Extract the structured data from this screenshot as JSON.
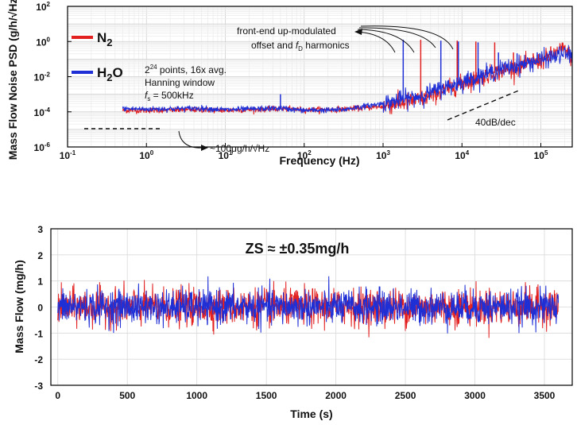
{
  "chart_data": [
    {
      "type": "line",
      "xscale": "log",
      "yscale": "log",
      "xlabel": "Frequency (Hz)",
      "ylabel": "Mass Flow Noise PSD (g/h/√Hz)",
      "xlim": [
        0.1,
        250000
      ],
      "ylim": [
        1e-06,
        100
      ],
      "xticks": [
        "10-1",
        "100",
        "101",
        "102",
        "103",
        "104",
        "105"
      ],
      "yticks": [
        "10-6",
        "10-4",
        "10-2",
        "100",
        "102"
      ],
      "grid": true,
      "legend_position": "top-left",
      "series": [
        {
          "name": "N2",
          "color": "#e32020",
          "x": [
            0.5,
            1,
            5,
            10,
            50,
            100,
            300,
            1000,
            3000,
            10000,
            30000,
            100000,
            200000,
            250000
          ],
          "y": [
            0.00012,
            0.00012,
            0.00013,
            0.00012,
            0.00015,
            0.00013,
            0.00014,
            0.0002,
            0.0005,
            0.004,
            0.02,
            0.08,
            0.4,
            0.1
          ]
        },
        {
          "name": "H2O",
          "color": "#1e2fd6",
          "x": [
            0.5,
            1,
            5,
            10,
            50,
            100,
            300,
            1000,
            3000,
            10000,
            30000,
            100000,
            200000,
            250000
          ],
          "y": [
            0.00015,
            0.00014,
            0.00016,
            0.00013,
            0.00016,
            0.00012,
            0.00013,
            0.0003,
            0.0008,
            0.005,
            0.025,
            0.09,
            0.2,
            0.15
          ]
        }
      ],
      "harmonic_peaks": [
        {
          "series": "H2O",
          "x": [
            1800,
            5400,
            9000,
            16000,
            29000,
            50000,
            90000
          ]
        },
        {
          "series": "N2",
          "x": [
            3000,
            8700,
            15000,
            26000,
            45000,
            80000
          ]
        }
      ],
      "annotations": {
        "acq_line1": "2",
        "acq_line1_sup": "24",
        "acq_line1_rest": " points, 16x avg.",
        "acq_line2": "Hanning window",
        "acq_line3_f": "f",
        "acq_line3_sub": "s",
        "acq_line3_rest": " = 500kHz",
        "frontend_line1": "front-end up-modulated",
        "frontend_line2_a": "offset and ",
        "frontend_line2_f": "f",
        "frontend_line2_sub": "D",
        "frontend_line2_b": " harmonics",
        "floor": "~100μg/h/√Hz",
        "slope": "40dB/dec"
      },
      "legend": {
        "n2_main": "N",
        "n2_sub": "2",
        "h2o_main": "H",
        "h2o_sub": "2",
        "h2o_tail": "O"
      }
    },
    {
      "type": "line",
      "xlabel": "Time (s)",
      "ylabel": "Mass Flow (mg/h)",
      "xlim": [
        -50,
        3700
      ],
      "ylim": [
        -3,
        3
      ],
      "xticks": [
        "0",
        "500",
        "1000",
        "1500",
        "2000",
        "2500",
        "3000",
        "3500"
      ],
      "yticks": [
        "3",
        "2",
        "1",
        "0",
        "-1",
        "-2",
        "-3"
      ],
      "grid": true,
      "annotation": "ZS ≈ ±0.35mg/h",
      "series": [
        {
          "name": "N2",
          "color": "#e32020",
          "x_range": [
            0,
            3600
          ],
          "std": 0.35,
          "max": 1.5,
          "min": -1.5
        },
        {
          "name": "H2O",
          "color": "#1e2fd6",
          "x_range": [
            0,
            3600
          ],
          "std": 0.33,
          "max": 1.45,
          "min": -1.3
        }
      ]
    }
  ]
}
